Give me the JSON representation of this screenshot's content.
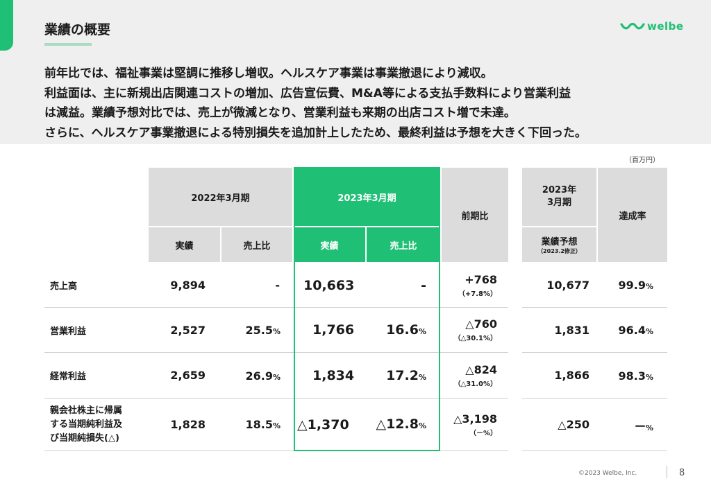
{
  "header": {
    "title": "業績の概要",
    "logo_text": "welbe"
  },
  "summary": {
    "lines": [
      "前年比では、福祉事業は堅調に推移し増収。ヘルスケア事業は事業撤退により減収。",
      "利益面は、主に新規出店関連コストの増加、広告宣伝費、M&A等による支払手数料により営業利益",
      "は減益。業績予想対比では、売上が微減となり、営業利益も来期の出店コスト増で未達。",
      "さらに、ヘルスケア事業撤退による特別損失を追加計上したため、最終利益は予想を大きく下回った。"
    ]
  },
  "table": {
    "unit": "（百万円）",
    "headers": {
      "fy2022": "2022年3月期",
      "fy2023": "2023年3月期",
      "actual": "実績",
      "ratio": "売上比",
      "yoy": "前期比",
      "forecast_period": "2023年\n3月期",
      "forecast": "業績予想",
      "forecast_note": "（2023.2修正）",
      "achievement": "達成率"
    },
    "rows": [
      {
        "label": "売上高",
        "fy2022_actual": "9,894",
        "fy2022_ratio": "-",
        "fy2023_actual": "10,663",
        "fy2023_ratio": "-",
        "yoy_main": "+768",
        "yoy_sub": "（+7.8%）",
        "forecast": "10,677",
        "achievement": "99.9",
        "achievement_unit": "%"
      },
      {
        "label": "営業利益",
        "fy2022_actual": "2,527",
        "fy2022_ratio": "25.5",
        "fy2022_ratio_unit": "%",
        "fy2023_actual": "1,766",
        "fy2023_ratio": "16.6",
        "fy2023_ratio_unit": "%",
        "yoy_main": "△760",
        "yoy_sub": "（△30.1%）",
        "forecast": "1,831",
        "achievement": "96.4",
        "achievement_unit": "%"
      },
      {
        "label": "経常利益",
        "fy2022_actual": "2,659",
        "fy2022_ratio": "26.9",
        "fy2022_ratio_unit": "%",
        "fy2023_actual": "1,834",
        "fy2023_ratio": "17.2",
        "fy2023_ratio_unit": "%",
        "yoy_main": "△824",
        "yoy_sub": "（△31.0%）",
        "forecast": "1,866",
        "achievement": "98.3",
        "achievement_unit": "%"
      },
      {
        "label_lines": [
          "親会社株主に帰属",
          "する当期純利益及",
          "び当期純損失(△)"
        ],
        "fy2022_actual": "1,828",
        "fy2022_ratio": "18.5",
        "fy2022_ratio_unit": "%",
        "fy2023_actual": "△1,370",
        "fy2023_ratio": "△12.8",
        "fy2023_ratio_unit": "%",
        "yoy_main": "△3,198",
        "yoy_sub": "（－%）",
        "forecast": "△250",
        "achievement": "ー",
        "achievement_unit": "%"
      }
    ]
  },
  "footer": {
    "copyright": "©2023 Welbe, Inc.",
    "page": "8"
  },
  "colors": {
    "accent": "#1fbf76",
    "header_grey": "#dcdcdc",
    "band": "#efefef"
  }
}
